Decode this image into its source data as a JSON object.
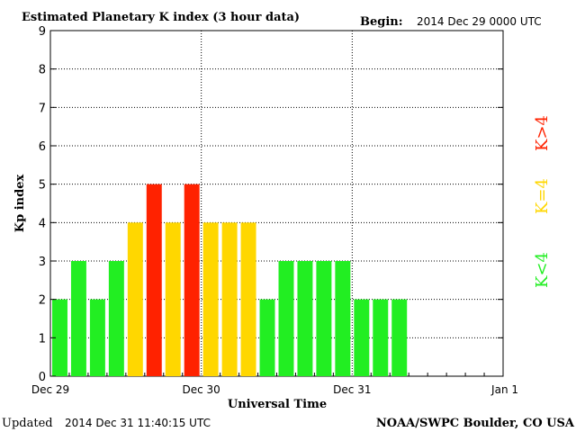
{
  "header": {
    "title": "Estimated Planetary K index (3 hour data)",
    "begin_label": "Begin:",
    "begin_value": "2014 Dec 29 0000 UTC"
  },
  "footer": {
    "updated_label": "Updated",
    "updated_value": "2014 Dec 31 11:40:15 UTC",
    "credit": "NOAA/SWPC Boulder, CO USA"
  },
  "colors": {
    "low": "#22ee22",
    "moderate": "#ffd700",
    "storm": "#ff2200"
  },
  "chart_data": {
    "type": "bar",
    "title": "Estimated Planetary K index (3 hour data)",
    "xlabel": "Universal Time",
    "ylabel": "Kp index",
    "ylim": [
      0,
      9
    ],
    "yticks": [
      "0",
      "1",
      "2",
      "3",
      "4",
      "5",
      "6",
      "7",
      "8",
      "9"
    ],
    "xticks": [
      "Dec 29",
      "Dec 30",
      "Dec 31",
      "Jan 1"
    ],
    "slots_per_day": 8,
    "total_slots": 24,
    "values": [
      2,
      3,
      2,
      3,
      4,
      5,
      4,
      5,
      4,
      4,
      4,
      2,
      3,
      3,
      3,
      3,
      2,
      2,
      2
    ],
    "grid": true,
    "legend": [
      {
        "label": "K<4",
        "color": "#22ee22"
      },
      {
        "label": "K=4",
        "color": "#ffd700"
      },
      {
        "label": "K>4",
        "color": "#ff2200"
      }
    ],
    "legend_position": "right"
  }
}
